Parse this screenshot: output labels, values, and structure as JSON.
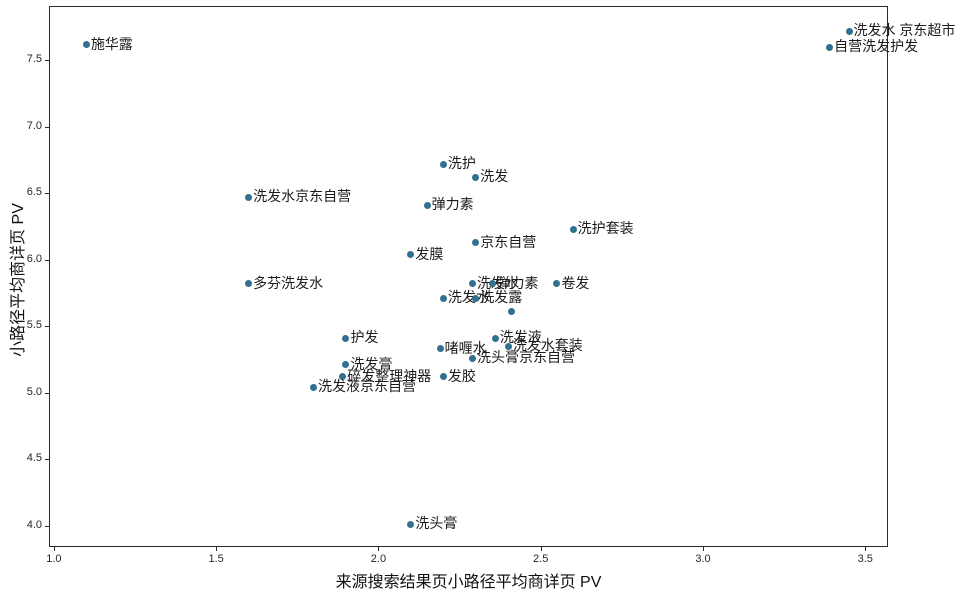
{
  "chart_data": {
    "type": "scatter",
    "title": "",
    "xlabel": "来源搜索结果页小路径平均商详页 PV",
    "ylabel": "小路径平均商详页 PV",
    "xlim": [
      0.985,
      3.57
    ],
    "ylim": [
      3.84,
      7.91
    ],
    "x_ticks": [
      1.0,
      1.5,
      2.0,
      2.5,
      3.0,
      3.5
    ],
    "y_ticks": [
      4.0,
      4.5,
      5.0,
      5.5,
      6.0,
      6.5,
      7.0,
      7.5
    ],
    "grid": false,
    "legend": false,
    "marker_color": "#31708f",
    "background_color": "#ffffff",
    "points": [
      {
        "label": "施华露",
        "x": 1.1,
        "y": 7.62
      },
      {
        "label": "洗发水 京东超市",
        "x": 3.45,
        "y": 7.72
      },
      {
        "label": "自营洗发护发",
        "x": 3.39,
        "y": 7.6
      },
      {
        "label": "洗护",
        "x": 2.2,
        "y": 6.72
      },
      {
        "label": "洗发",
        "x": 2.3,
        "y": 6.62
      },
      {
        "label": "洗发水京东自营",
        "x": 1.6,
        "y": 6.47
      },
      {
        "label": "弹力素",
        "x": 2.15,
        "y": 6.41
      },
      {
        "label": "洗护套装",
        "x": 2.6,
        "y": 6.23
      },
      {
        "label": "京东自营",
        "x": 2.3,
        "y": 6.13
      },
      {
        "label": "发膜",
        "x": 2.1,
        "y": 6.04
      },
      {
        "label": "多芬洗发水",
        "x": 1.6,
        "y": 5.82
      },
      {
        "label": "洗发水",
        "x": 2.29,
        "y": 5.82
      },
      {
        "label": "弹力素",
        "x": 2.35,
        "y": 5.82
      },
      {
        "label": "卷发",
        "x": 2.55,
        "y": 5.82
      },
      {
        "label": "洗发水",
        "x": 2.2,
        "y": 5.71
      },
      {
        "label": "洗发露",
        "x": 2.3,
        "y": 5.71
      },
      {
        "label": "",
        "x": 2.41,
        "y": 5.61
      },
      {
        "label": "洗发液",
        "x": 2.36,
        "y": 5.41
      },
      {
        "label": "护发",
        "x": 1.9,
        "y": 5.41
      },
      {
        "label": "洗发水套装",
        "x": 2.4,
        "y": 5.35
      },
      {
        "label": "啫喱水",
        "x": 2.19,
        "y": 5.33
      },
      {
        "label": "洗头膏京东自营",
        "x": 2.29,
        "y": 5.26
      },
      {
        "label": "洗发膏",
        "x": 1.9,
        "y": 5.21
      },
      {
        "label": "发胶",
        "x": 2.2,
        "y": 5.12
      },
      {
        "label": "碎发整理神器",
        "x": 1.89,
        "y": 5.12
      },
      {
        "label": "洗发液京东自营",
        "x": 1.8,
        "y": 5.04
      },
      {
        "label": "洗头膏",
        "x": 2.1,
        "y": 4.01
      }
    ]
  }
}
